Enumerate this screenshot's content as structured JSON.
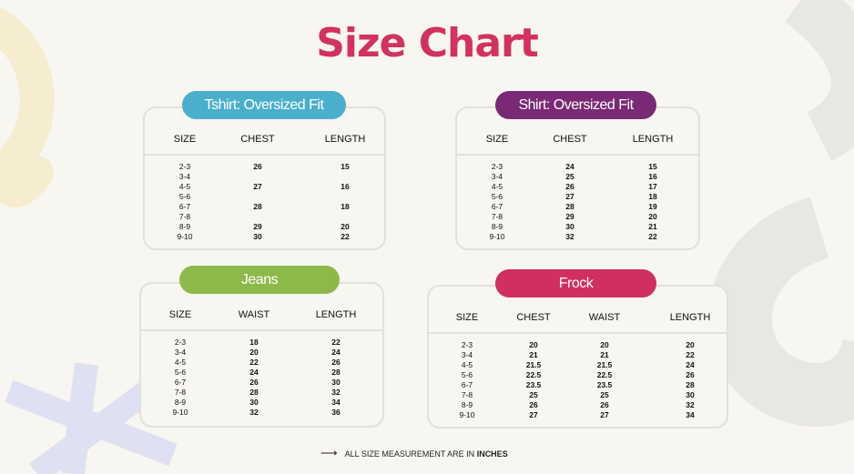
{
  "title": "Size Chart",
  "colors": {
    "title": "#d3315f",
    "tshirt": "#4aafcb",
    "shirt": "#7a2a74",
    "jeans": "#8db84a",
    "frock": "#cf3060"
  },
  "tables": [
    {
      "id": "tshirt",
      "label": "Tshirt: Oversized Fit",
      "columns": [
        "SIZE",
        "CHEST",
        "LENGTH"
      ],
      "rows": [
        [
          "2-3",
          "26",
          "15"
        ],
        [
          "3-4",
          "",
          ""
        ],
        [
          "4-5",
          "27",
          "16"
        ],
        [
          "5-6",
          "",
          ""
        ],
        [
          "6-7",
          "28",
          "18"
        ],
        [
          "7-8",
          "",
          ""
        ],
        [
          "8-9",
          "29",
          "20"
        ],
        [
          "9-10",
          "30",
          "22"
        ]
      ]
    },
    {
      "id": "shirt",
      "label": "Shirt: Oversized Fit",
      "columns": [
        "SIZE",
        "CHEST",
        "LENGTH"
      ],
      "rows": [
        [
          "2-3",
          "24",
          "15"
        ],
        [
          "3-4",
          "25",
          "16"
        ],
        [
          "4-5",
          "26",
          "17"
        ],
        [
          "5-6",
          "27",
          "18"
        ],
        [
          "6-7",
          "28",
          "19"
        ],
        [
          "7-8",
          "29",
          "20"
        ],
        [
          "8-9",
          "30",
          "21"
        ],
        [
          "9-10",
          "32",
          "22"
        ]
      ]
    },
    {
      "id": "jeans",
      "label": "Jeans",
      "columns": [
        "SIZE",
        "WAIST",
        "LENGTH"
      ],
      "rows": [
        [
          "2-3",
          "18",
          "22"
        ],
        [
          "3-4",
          "20",
          "24"
        ],
        [
          "4-5",
          "22",
          "26"
        ],
        [
          "5-6",
          "24",
          "28"
        ],
        [
          "6-7",
          "26",
          "30"
        ],
        [
          "7-8",
          "28",
          "32"
        ],
        [
          "8-9",
          "30",
          "34"
        ],
        [
          "9-10",
          "32",
          "36"
        ]
      ]
    },
    {
      "id": "frock",
      "label": "Frock",
      "columns": [
        "SIZE",
        "CHEST",
        "WAIST",
        "LENGTH"
      ],
      "rows": [
        [
          "2-3",
          "20",
          "20",
          "20"
        ],
        [
          "3-4",
          "21",
          "21",
          "22"
        ],
        [
          "4-5",
          "21.5",
          "21.5",
          "24"
        ],
        [
          "5-6",
          "22.5",
          "22.5",
          "26"
        ],
        [
          "6-7",
          "23.5",
          "23.5",
          "28"
        ],
        [
          "7-8",
          "25",
          "25",
          "30"
        ],
        [
          "8-9",
          "26",
          "26",
          "32"
        ],
        [
          "9-10",
          "27",
          "27",
          "34"
        ]
      ]
    }
  ],
  "footer": {
    "arrow": "⟶",
    "text": "ALL SIZE MEASUREMENT ARE IN ",
    "bold": "INCHES"
  }
}
